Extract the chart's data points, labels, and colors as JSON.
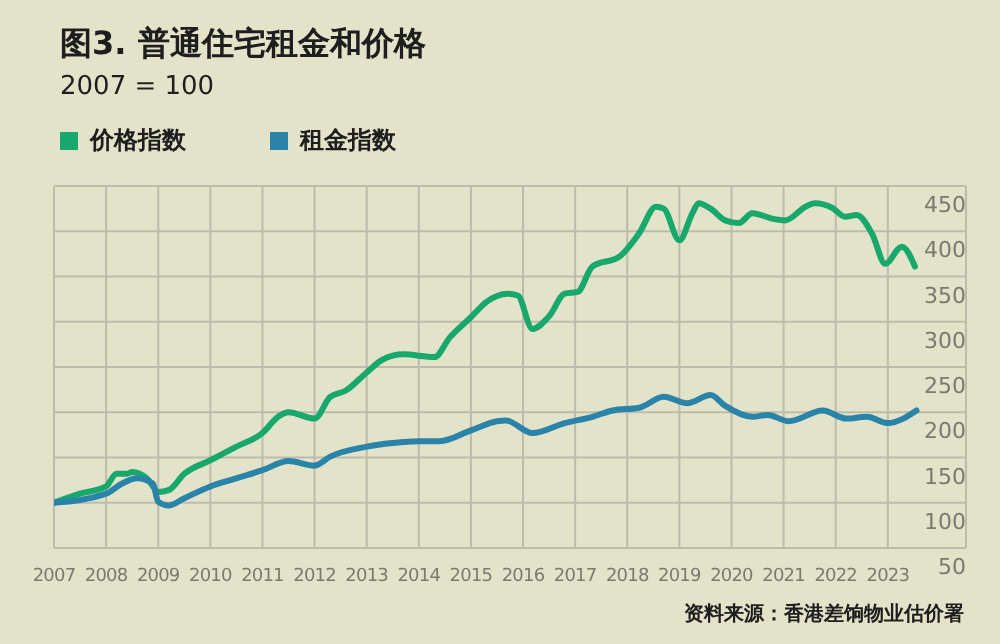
{
  "chart_data": {
    "type": "line",
    "title": "图3. 普通住宅租金和价格",
    "subtitle": "2007 = 100",
    "annotations": [
      "资料来源：香港差饷物业估价署"
    ],
    "series": [
      {
        "name": "价格指数",
        "color": "#18a86c",
        "x": [
          2007,
          2007.5,
          2008,
          2008.2,
          2008.4,
          2008.5,
          2008.8,
          2009,
          2009.2,
          2009.5,
          2010,
          2010.5,
          2011,
          2011.3,
          2011.5,
          2012,
          2012.3,
          2012.6,
          2013,
          2013.3,
          2013.7,
          2014.3,
          2014.6,
          2015,
          2015.3,
          2015.7,
          2015.9,
          2016.18,
          2016.5,
          2016.8,
          2017.05,
          2017.33,
          2017.85,
          2018.23,
          2018.55,
          2018.7,
          2019,
          2019.25,
          2019.37,
          2019.6,
          2019.88,
          2020.14,
          2020.4,
          2020.78,
          2021.03,
          2021.42,
          2021.6,
          2021.93,
          2022.18,
          2022.4,
          2022.7,
          2022.95,
          2023.27,
          2023.52
        ],
        "values": [
          100,
          110,
          118,
          132,
          132,
          134,
          126,
          112,
          114,
          132,
          147,
          162,
          177,
          195,
          200,
          193,
          217,
          224,
          244,
          258,
          264,
          261,
          283,
          305,
          322,
          331,
          329,
          292,
          306,
          331,
          333,
          361,
          372,
          398,
          427,
          425,
          390,
          420,
          431,
          425,
          412,
          409,
          420,
          414,
          412,
          427,
          431,
          426,
          416,
          418,
          397,
          364,
          383,
          361
        ]
      },
      {
        "name": "租金指数",
        "color": "#2a83a8",
        "x": [
          2007,
          2008,
          2008.3,
          2008.6,
          2008.9,
          2009,
          2009.2,
          2009.5,
          2010,
          2010.5,
          2011,
          2011.5,
          2012,
          2012.3,
          2013,
          2013.5,
          2014,
          2014.4,
          2015,
          2015.5,
          2015.67,
          2016.18,
          2016.8,
          2017.33,
          2017.72,
          2018.23,
          2018.7,
          2019.15,
          2019.6,
          2019.88,
          2020.4,
          2020.7,
          2021.1,
          2021.75,
          2022.2,
          2022.6,
          2023,
          2023.55
        ],
        "values": [
          100,
          110,
          121,
          127,
          121,
          101,
          97,
          105,
          118,
          127,
          136,
          146,
          141,
          151,
          162,
          166,
          168,
          168,
          180,
          190,
          191,
          177,
          188,
          195,
          202,
          205,
          217,
          210,
          219,
          207,
          195,
          197,
          190,
          202,
          193,
          195,
          188,
          202
        ]
      }
    ],
    "xlim": [
      2007,
      2024.5
    ],
    "xticks": [
      2007,
      2008,
      2009,
      2010,
      2011,
      2012,
      2013,
      2014,
      2015,
      2016,
      2017,
      2018,
      2019,
      2020,
      2021,
      2022,
      2023
    ],
    "ylim": [
      50,
      450
    ],
    "yticks": [
      50,
      100,
      150,
      200,
      250,
      300,
      350,
      400,
      450
    ],
    "grid": true,
    "legend": "top left",
    "marker": "none",
    "line_style": "solid"
  }
}
